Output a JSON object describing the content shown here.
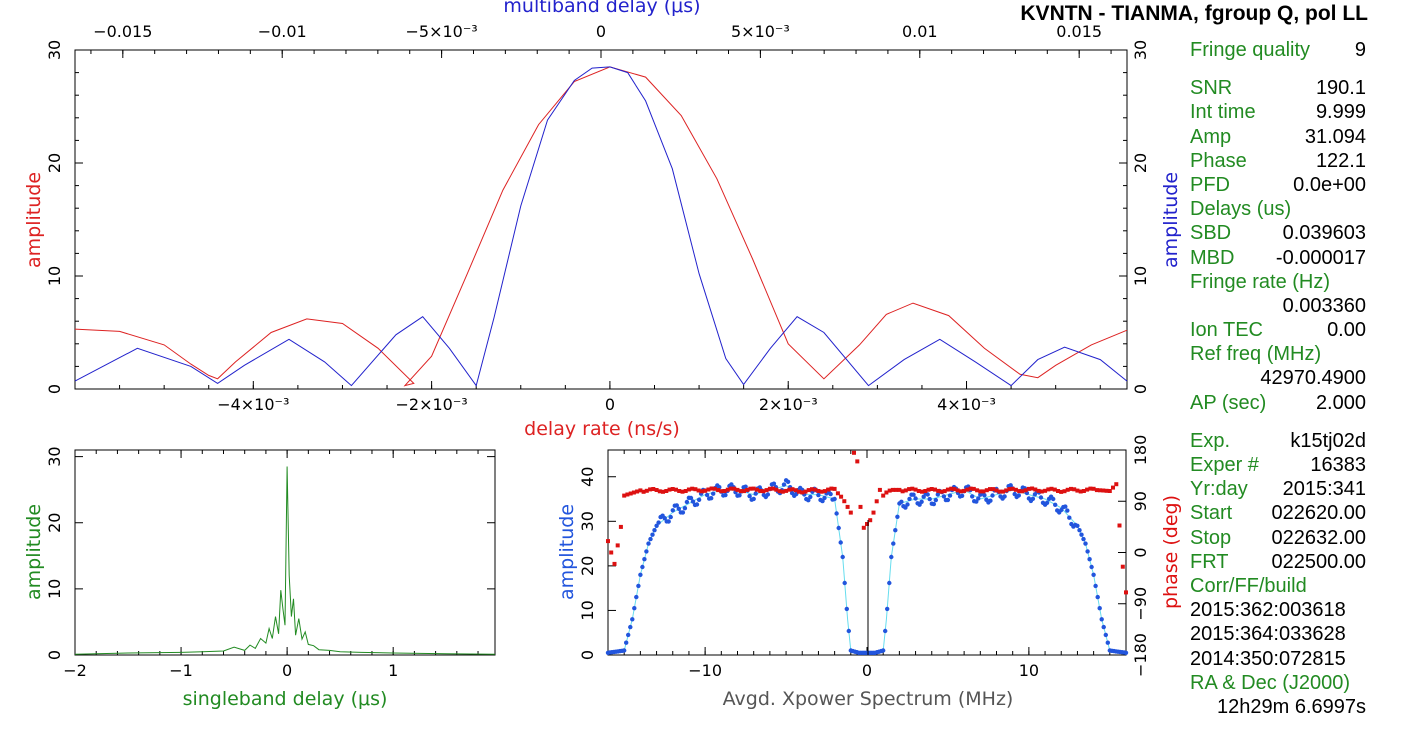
{
  "title": "KVNTN - TIANMA, fgroup Q, pol LL",
  "info": {
    "fringe_quality_label": "Fringe quality",
    "fringe_quality": "9",
    "snr_label": "SNR",
    "snr": "190.1",
    "int_time_label": "Int time",
    "int_time": "9.999",
    "amp_label": "Amp",
    "amp": "31.094",
    "phase_label": "Phase",
    "phase": "122.1",
    "pfd_label": "PFD",
    "pfd": "0.0e+00",
    "delays_label": "Delays (us)",
    "sbd_label": "SBD",
    "sbd": "0.039603",
    "mbd_label": "MBD",
    "mbd": "-0.000017",
    "fringe_rate_label": "Fringe rate (Hz)",
    "fringe_rate": "0.003360",
    "ion_tec_label": "Ion TEC",
    "ion_tec": "0.00",
    "ref_freq_label": "Ref freq (MHz)",
    "ref_freq": "42970.4900",
    "ap_label": "AP (sec)",
    "ap": "2.000",
    "exp_label": "Exp.",
    "exp": "k15tj02d",
    "exper_label": "Exper #",
    "exper": "16383",
    "yrday_label": "Yr:day",
    "yrday": "2015:341",
    "start_label": "Start",
    "start": "022620.00",
    "stop_label": "Stop",
    "stop": "022632.00",
    "frt_label": "FRT",
    "frt": "022500.00",
    "build_label": "Corr/FF/build",
    "build1": "2015:362:003618",
    "build2": "2015:364:033628",
    "build3": "2014:350:072815",
    "radec_label": "RA & Dec (J2000)",
    "ra": "12h29m 6.6997s"
  },
  "chart_data": [
    {
      "name": "delay-rate-and-multiband",
      "type": "line",
      "ylabel_left": "amplitude",
      "ylabel_right": "amplitude",
      "ylim": [
        0,
        30
      ],
      "y_ticks": [
        "0",
        "10",
        "20",
        "30"
      ],
      "bottom_axis": {
        "xlabel": "delay rate (ns/s)",
        "xlim": [
          -0.006,
          0.0058
        ],
        "ticks": [
          -0.004,
          -0.002,
          0,
          0.002,
          0.004
        ],
        "tick_labels": [
          "−4×10⁻³",
          "−2×10⁻³",
          "0",
          "2×10⁻³",
          "4×10⁻³"
        ]
      },
      "top_axis": {
        "xlabel": "multiband delay (μs)",
        "xlim": [
          -0.0165,
          0.0165
        ],
        "ticks": [
          -0.015,
          -0.01,
          -0.005,
          0,
          0.005,
          0.01,
          0.015
        ],
        "tick_labels": [
          "−0.015",
          "−0.01",
          "−5×10⁻³",
          "0",
          "5×10⁻³",
          "0.01",
          "0.015"
        ]
      },
      "series": [
        {
          "name": "delay rate",
          "color": "#dd2222",
          "x": [
            -0.006,
            -0.0055,
            -0.005,
            -0.0047,
            -0.0045,
            -0.0044,
            -0.0042,
            -0.0038,
            -0.0034,
            -0.003,
            -0.0026,
            -0.0022,
            -0.0023,
            -0.002,
            -0.0016,
            -0.0012,
            -0.0008,
            -0.0004,
            0,
            0.0004,
            0.0008,
            0.0012,
            0.0016,
            0.002,
            0.0024,
            0.0028,
            0.0031,
            0.0034,
            0.0038,
            0.0042,
            0.0046,
            0.0048,
            0.005,
            0.0054,
            0.0058
          ],
          "y": [
            5.3,
            5.1,
            3.9,
            2.2,
            1.2,
            0.9,
            2.4,
            5.0,
            6.2,
            5.8,
            3.6,
            0.5,
            0.3,
            2.9,
            10.2,
            17.6,
            23.4,
            27.2,
            28.5,
            27.6,
            24.2,
            18.6,
            11.5,
            4.0,
            0.9,
            3.9,
            6.6,
            7.6,
            6.5,
            3.6,
            1.3,
            1.0,
            2.1,
            3.9,
            5.2
          ]
        },
        {
          "name": "multiband delay",
          "color": "#2222cc",
          "x": [
            -0.006,
            -0.0053,
            -0.0047,
            -0.0044,
            -0.0041,
            -0.0036,
            -0.0032,
            -0.0029,
            -0.0024,
            -0.0021,
            -0.0018,
            -0.0015,
            -0.0013,
            -0.001,
            -0.0007,
            -0.0004,
            -0.0002,
            0,
            0.0002,
            0.0004,
            0.0007,
            0.001,
            0.0013,
            0.0015,
            0.0018,
            0.0021,
            0.0024,
            0.0029,
            0.0033,
            0.0037,
            0.0041,
            0.0045,
            0.0048,
            0.0051,
            0.0055,
            0.0058
          ],
          "y": [
            0.7,
            3.6,
            2.0,
            0.5,
            2.1,
            4.4,
            2.4,
            0.3,
            4.8,
            6.4,
            3.6,
            0.3,
            6.3,
            16.2,
            23.8,
            27.3,
            28.4,
            28.5,
            28.0,
            25.5,
            19.5,
            10.2,
            2.7,
            0.4,
            3.6,
            6.4,
            5.0,
            0.3,
            2.6,
            4.4,
            2.4,
            0.3,
            2.6,
            3.7,
            2.6,
            0.7
          ]
        }
      ]
    },
    {
      "name": "singleband-delay",
      "type": "line",
      "xlabel": "singleband delay (μs)",
      "ylabel": "amplitude",
      "xlim": [
        -2,
        1.96
      ],
      "ylim": [
        0,
        31
      ],
      "x_ticks": [
        "−2",
        "−1",
        "0",
        "1"
      ],
      "y_ticks": [
        "0",
        "10",
        "20",
        "30"
      ],
      "series": [
        {
          "name": "sbd amplitude",
          "color": "#228b22",
          "x": [
            -2,
            -1.5,
            -1.0,
            -0.8,
            -0.6,
            -0.5,
            -0.4,
            -0.35,
            -0.3,
            -0.25,
            -0.2,
            -0.17,
            -0.14,
            -0.11,
            -0.08,
            -0.06,
            -0.04,
            -0.02,
            0,
            0.02,
            0.04,
            0.06,
            0.08,
            0.11,
            0.14,
            0.17,
            0.2,
            0.25,
            0.3,
            0.4,
            0.5,
            0.7,
            1.0,
            1.5,
            1.96
          ],
          "y": [
            0.1,
            0.3,
            0.4,
            0.5,
            0.6,
            1.2,
            0.7,
            1.5,
            1.0,
            2.5,
            1.8,
            4.0,
            2.5,
            5.8,
            3.2,
            9.8,
            7.0,
            4.5,
            28.5,
            12.0,
            5.8,
            8.5,
            3.0,
            5.5,
            2.4,
            3.5,
            1.6,
            1.4,
            0.8,
            0.7,
            0.5,
            0.4,
            0.3,
            0.2,
            0.1
          ]
        }
      ]
    },
    {
      "name": "avgd-xpower-spectrum",
      "type": "scatter",
      "xlabel": "Avgd. Xpower Spectrum (MHz)",
      "ylabel_left": "amplitude",
      "ylabel_right": "phase (deg)",
      "xlim": [
        -16,
        16
      ],
      "ylim_left": [
        0,
        46
      ],
      "ylim_right": [
        -180,
        180
      ],
      "x_ticks": [
        "−10",
        "0",
        "10"
      ],
      "y_ticks_left": [
        "0",
        "10",
        "20",
        "30",
        "40"
      ],
      "y_ticks_right": [
        "−180",
        "−90",
        "0",
        "90",
        "180"
      ],
      "series": [
        {
          "name": "amplitude",
          "color": "#2255dd",
          "x": [
            -16,
            -15,
            -14.5,
            -14,
            -13.5,
            -13,
            -12,
            -11,
            -10,
            -9,
            -8,
            -7,
            -6,
            -5,
            -4,
            -3,
            -2,
            -1.5,
            -1.2,
            -1,
            -0.5,
            0,
            0.5,
            1,
            1.2,
            1.5,
            2,
            3,
            4,
            5,
            6,
            7,
            8,
            9,
            10,
            11,
            12,
            13,
            13.5,
            14,
            14.5,
            15,
            16
          ],
          "y": [
            0.5,
            1,
            8,
            18,
            25,
            29,
            32,
            34,
            36,
            37,
            37,
            36,
            37,
            38,
            36,
            36,
            35,
            22,
            8,
            1,
            0.5,
            0.5,
            0.5,
            1,
            8,
            22,
            34,
            35,
            35,
            36,
            37,
            35,
            36,
            37,
            36,
            35,
            33,
            29,
            25,
            18,
            8,
            1,
            0.5
          ]
        },
        {
          "name": "phase",
          "color": "#dd1111",
          "x": [
            -16,
            -15.6,
            -15.2,
            -15,
            -14,
            -12,
            -10,
            -8,
            -6,
            -4,
            -2,
            -1.5,
            -1.2,
            -1,
            -0.8,
            -0.6,
            -0.3,
            0.3,
            0.6,
            0.8,
            1,
            1.3,
            1.6,
            2,
            4,
            6,
            8,
            10,
            12,
            14,
            15,
            15.4,
            15.8,
            16
          ],
          "y": [
            20,
            -20,
            45,
            100,
            109,
            109,
            110,
            110,
            110,
            108,
            110,
            95,
            80,
            70,
            175,
            160,
            40,
            60,
            90,
            110,
            100,
            108,
            110,
            110,
            109,
            110,
            109,
            110,
            109,
            110,
            108,
            120,
            -25,
            -70
          ]
        }
      ]
    }
  ]
}
